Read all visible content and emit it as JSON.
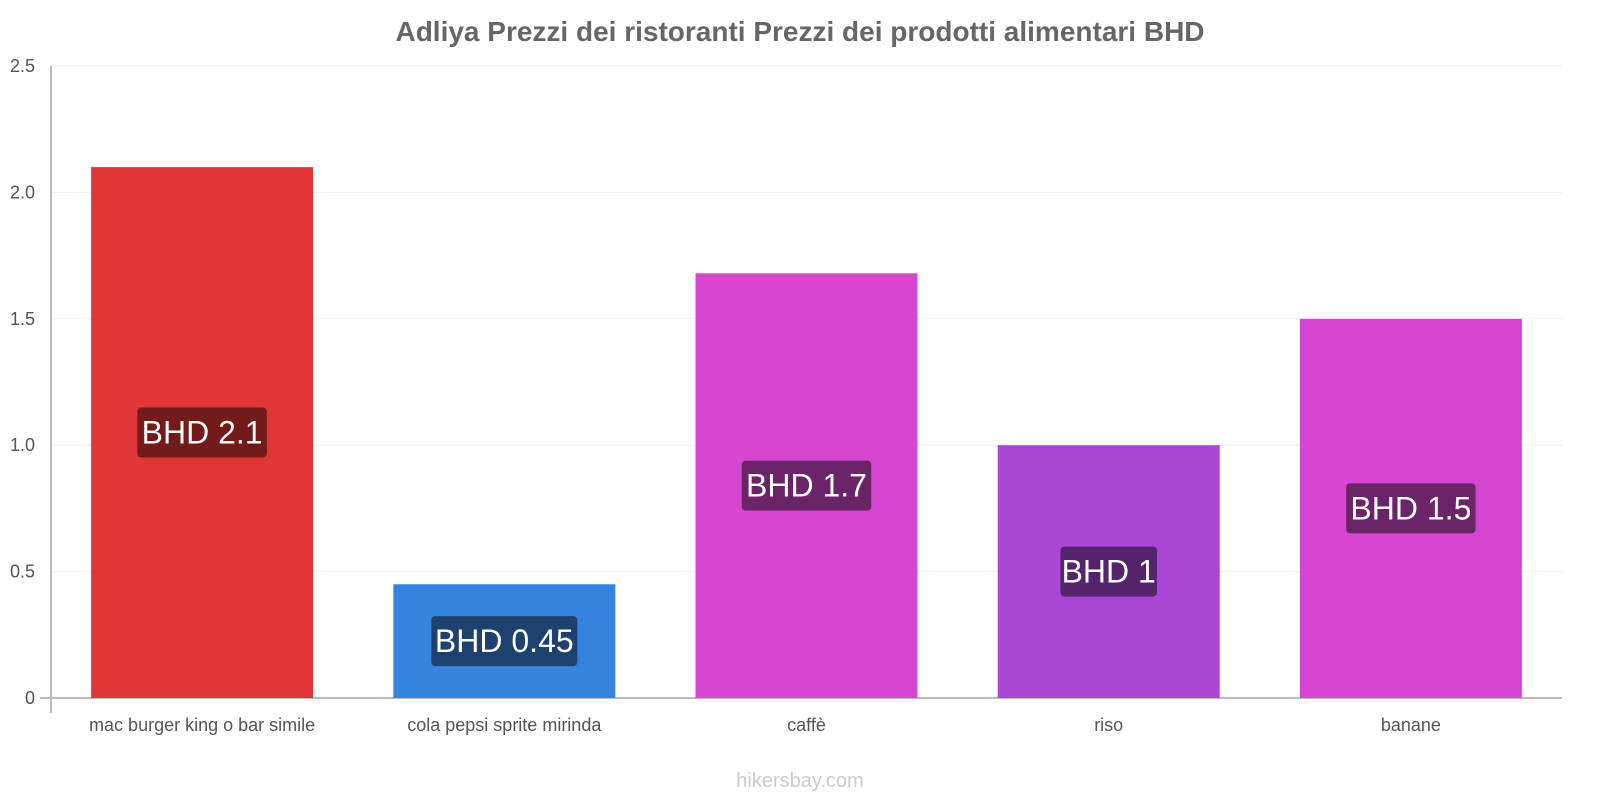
{
  "chart_data": {
    "type": "bar",
    "title": "Adliya Prezzi dei ristoranti Prezzi dei prodotti alimentari BHD",
    "xlabel": "",
    "ylabel": "",
    "ylim": [
      0,
      2.5
    ],
    "yticks": [
      "0",
      "0.5",
      "1.0",
      "1.5",
      "2.0",
      "2.5"
    ],
    "grid": true,
    "categories": [
      "mac burger king o bar simile",
      "cola pepsi sprite mirinda",
      "caffè",
      "riso",
      "banane"
    ],
    "values": [
      2.1,
      0.45,
      1.68,
      1.0,
      1.5
    ],
    "data_labels": [
      "BHD 2.1",
      "BHD 0.45",
      "BHD 1.7",
      "BHD 1",
      "BHD 1.5"
    ],
    "colors": [
      "#e03636",
      "#3584e0",
      "#d647d1",
      "#a847d6",
      "#d647d1"
    ],
    "label_bg_colors": [
      "#731b1b",
      "#1d426f",
      "#6b2468",
      "#54236b",
      "#6b2468"
    ]
  },
  "footer": "hikersbay.com"
}
